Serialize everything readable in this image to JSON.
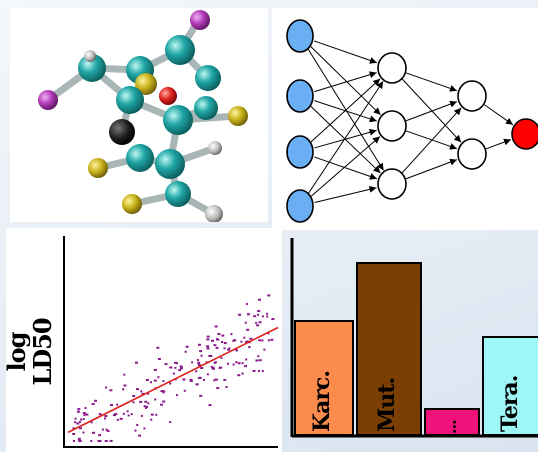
{
  "scatter": {
    "ylabel": "log LD50",
    "line_color": "#e0201a",
    "point_color": "#8a1a8a",
    "trend": {
      "x0": 0.0,
      "y0": 0.05,
      "x1": 1.0,
      "y1": 0.74
    }
  },
  "categories": {
    "bars": [
      {
        "label": "Karc.",
        "color": "#fb8c4c",
        "value": 0.58
      },
      {
        "label": "Mut.",
        "color": "#7b3f04",
        "value": 0.87
      },
      {
        "label": "...",
        "color": "#f0127a",
        "value": 0.14
      },
      {
        "label": "Tera.",
        "color": "#9ef6f6",
        "value": 0.5
      }
    ]
  },
  "network": {
    "input_color": "#6aaef4",
    "hidden_color": "#ffffff",
    "output_color": "#ff0000",
    "layers": [
      4,
      3,
      2,
      1
    ]
  },
  "molecule": {
    "atom_colors": [
      "#20a6a6",
      "#b23bb8",
      "#c8b21a",
      "#e02020",
      "#1a1a1a",
      "#b8b8b8"
    ]
  }
}
